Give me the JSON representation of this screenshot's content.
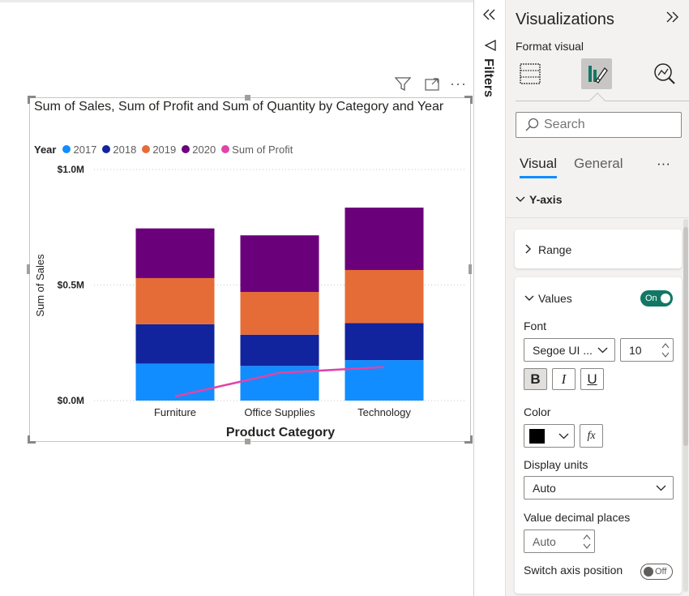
{
  "visual_header": {
    "filter_icon": "filter-icon",
    "focus_icon": "focus-mode-icon",
    "more_icon": "more-options-icon"
  },
  "chart_data": {
    "type": "bar",
    "stacked": true,
    "title": "Sum of Sales, Sum of Profit and Sum of Quantity by Category and Year",
    "xlabel": "Product Category",
    "ylabel": "Sum of Sales",
    "legend_title": "Year",
    "legend_position": "top-left",
    "categories": [
      "Furniture",
      "Office Supplies",
      "Technology"
    ],
    "yticks": [
      "$0.0M",
      "$0.5M",
      "$1.0M"
    ],
    "ylim": [
      0,
      1000000
    ],
    "grid": true,
    "series": [
      {
        "name": "2017",
        "color": "#118DFF",
        "values": [
          160000,
          150000,
          175000
        ]
      },
      {
        "name": "2018",
        "color": "#12239E",
        "values": [
          170000,
          135000,
          160000
        ]
      },
      {
        "name": "2019",
        "color": "#E66C37",
        "values": [
          200000,
          185000,
          230000
        ]
      },
      {
        "name": "2020",
        "color": "#6B007B",
        "values": [
          215000,
          245000,
          270000
        ]
      }
    ],
    "line_series": {
      "name": "Sum of Profit",
      "color": "#E044A7",
      "values": [
        18000,
        120000,
        145000
      ]
    }
  },
  "filters_pane": {
    "label": "Filters",
    "collapse_icon": "double-chevron-left-icon",
    "filter_icon": "filter-outline-icon"
  },
  "viz_pane": {
    "title": "Visualizations",
    "expand_icon": "double-chevron-right-icon",
    "format_visual": "Format visual",
    "search_placeholder": "Search",
    "tabs": {
      "visual": "Visual",
      "general": "General",
      "more": "···"
    },
    "section": "Y-axis",
    "range_label": "Range",
    "values_label": "Values",
    "values_toggle": "On",
    "font_label": "Font",
    "font_family": "Segoe UI ...",
    "font_size": "10",
    "bold": "B",
    "italic": "I",
    "underline": "U",
    "color_label": "Color",
    "color_value": "#000000",
    "fx": "fx",
    "display_units_label": "Display units",
    "display_units_value": "Auto",
    "decimal_label": "Value decimal places",
    "decimal_value": "Auto",
    "switch_label": "Switch axis position",
    "switch_toggle": "Off"
  }
}
